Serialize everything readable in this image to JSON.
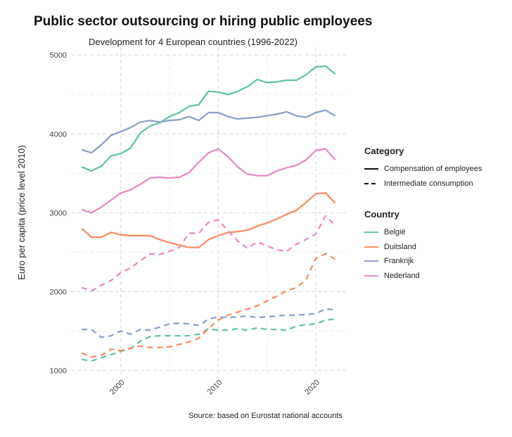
{
  "chart_data": {
    "type": "line",
    "title": "Public sector outsourcing or hiring public employees",
    "subtitle": "Development for 4 European countries (1996-2022)",
    "xlabel": "",
    "ylabel": "Euro per capita (price level 2010)",
    "caption": "Source: based on Eurostat national accounts",
    "xlim": [
      1994.9,
      2023.1
    ],
    "ylim": [
      950,
      5100
    ],
    "xticks": [
      2000,
      2010,
      2020
    ],
    "yticks": [
      1000,
      2000,
      3000,
      4000,
      5000
    ],
    "x": [
      1996,
      1997,
      1998,
      1999,
      2000,
      2001,
      2002,
      2003,
      2004,
      2005,
      2006,
      2007,
      2008,
      2009,
      2010,
      2011,
      2012,
      2013,
      2014,
      2015,
      2016,
      2017,
      2018,
      2019,
      2020,
      2021,
      2022
    ],
    "legend": {
      "category_title": "Category",
      "categories": [
        {
          "label": "Compensation of employees",
          "style": "solid"
        },
        {
          "label": "Intermediate consumption",
          "style": "dashed"
        }
      ],
      "country_title": "Country",
      "countries": [
        {
          "label": "België",
          "color": "#66c2a5"
        },
        {
          "label": "Duitsland",
          "color": "#fc8d62"
        },
        {
          "label": "Frankrijk",
          "color": "#8da0cb"
        },
        {
          "label": "Nederland",
          "color": "#e78ac3"
        }
      ]
    },
    "series": [
      {
        "name": "België",
        "category": "Compensation of employees",
        "color": "#66c2a5",
        "style": "solid",
        "values": [
          3580,
          3530,
          3590,
          3720,
          3750,
          3820,
          4010,
          4100,
          4140,
          4220,
          4270,
          4350,
          4370,
          4540,
          4530,
          4500,
          4540,
          4600,
          4690,
          4650,
          4660,
          4680,
          4680,
          4750,
          4850,
          4860,
          4760
        ]
      },
      {
        "name": "Duitsland",
        "category": "Compensation of employees",
        "color": "#fc8d62",
        "style": "solid",
        "values": [
          2800,
          2690,
          2690,
          2750,
          2720,
          2710,
          2710,
          2710,
          2660,
          2620,
          2590,
          2560,
          2560,
          2660,
          2710,
          2750,
          2760,
          2780,
          2830,
          2870,
          2920,
          2980,
          3030,
          3130,
          3240,
          3250,
          3120
        ]
      },
      {
        "name": "Frankrijk",
        "category": "Compensation of employees",
        "color": "#8da0cb",
        "style": "solid",
        "values": [
          3800,
          3760,
          3860,
          3980,
          4030,
          4080,
          4150,
          4170,
          4150,
          4170,
          4180,
          4220,
          4170,
          4270,
          4270,
          4220,
          4190,
          4200,
          4210,
          4230,
          4250,
          4280,
          4230,
          4210,
          4270,
          4300,
          4230
        ]
      },
      {
        "name": "Nederland",
        "category": "Compensation of employees",
        "color": "#e78ac3",
        "style": "solid",
        "values": [
          3040,
          3000,
          3070,
          3160,
          3250,
          3290,
          3360,
          3440,
          3450,
          3440,
          3450,
          3510,
          3640,
          3760,
          3810,
          3710,
          3580,
          3490,
          3470,
          3470,
          3530,
          3570,
          3600,
          3670,
          3790,
          3810,
          3670
        ]
      },
      {
        "name": "België",
        "category": "Intermediate consumption",
        "color": "#66c2a5",
        "style": "dashed",
        "values": [
          1140,
          1120,
          1160,
          1200,
          1240,
          1280,
          1370,
          1430,
          1440,
          1440,
          1440,
          1440,
          1460,
          1530,
          1510,
          1510,
          1530,
          1510,
          1540,
          1520,
          1520,
          1510,
          1560,
          1580,
          1590,
          1640,
          1650
        ]
      },
      {
        "name": "Duitsland",
        "category": "Intermediate consumption",
        "color": "#fc8d62",
        "style": "dashed",
        "values": [
          1220,
          1170,
          1190,
          1270,
          1250,
          1280,
          1310,
          1290,
          1290,
          1300,
          1330,
          1360,
          1410,
          1530,
          1640,
          1700,
          1740,
          1780,
          1820,
          1880,
          1940,
          2010,
          2050,
          2150,
          2420,
          2480,
          2410
        ]
      },
      {
        "name": "Frankrijk",
        "category": "Intermediate consumption",
        "color": "#8da0cb",
        "style": "dashed",
        "values": [
          1520,
          1520,
          1420,
          1440,
          1500,
          1460,
          1520,
          1510,
          1550,
          1590,
          1600,
          1590,
          1570,
          1650,
          1680,
          1670,
          1680,
          1690,
          1670,
          1680,
          1690,
          1700,
          1700,
          1710,
          1720,
          1780,
          1770
        ]
      },
      {
        "name": "Nederland",
        "category": "Intermediate consumption",
        "color": "#e78ac3",
        "style": "dashed",
        "values": [
          2050,
          2010,
          2080,
          2140,
          2240,
          2300,
          2390,
          2480,
          2470,
          2510,
          2560,
          2740,
          2740,
          2880,
          2910,
          2770,
          2640,
          2550,
          2630,
          2580,
          2530,
          2510,
          2600,
          2660,
          2730,
          2960,
          2840
        ]
      }
    ]
  }
}
